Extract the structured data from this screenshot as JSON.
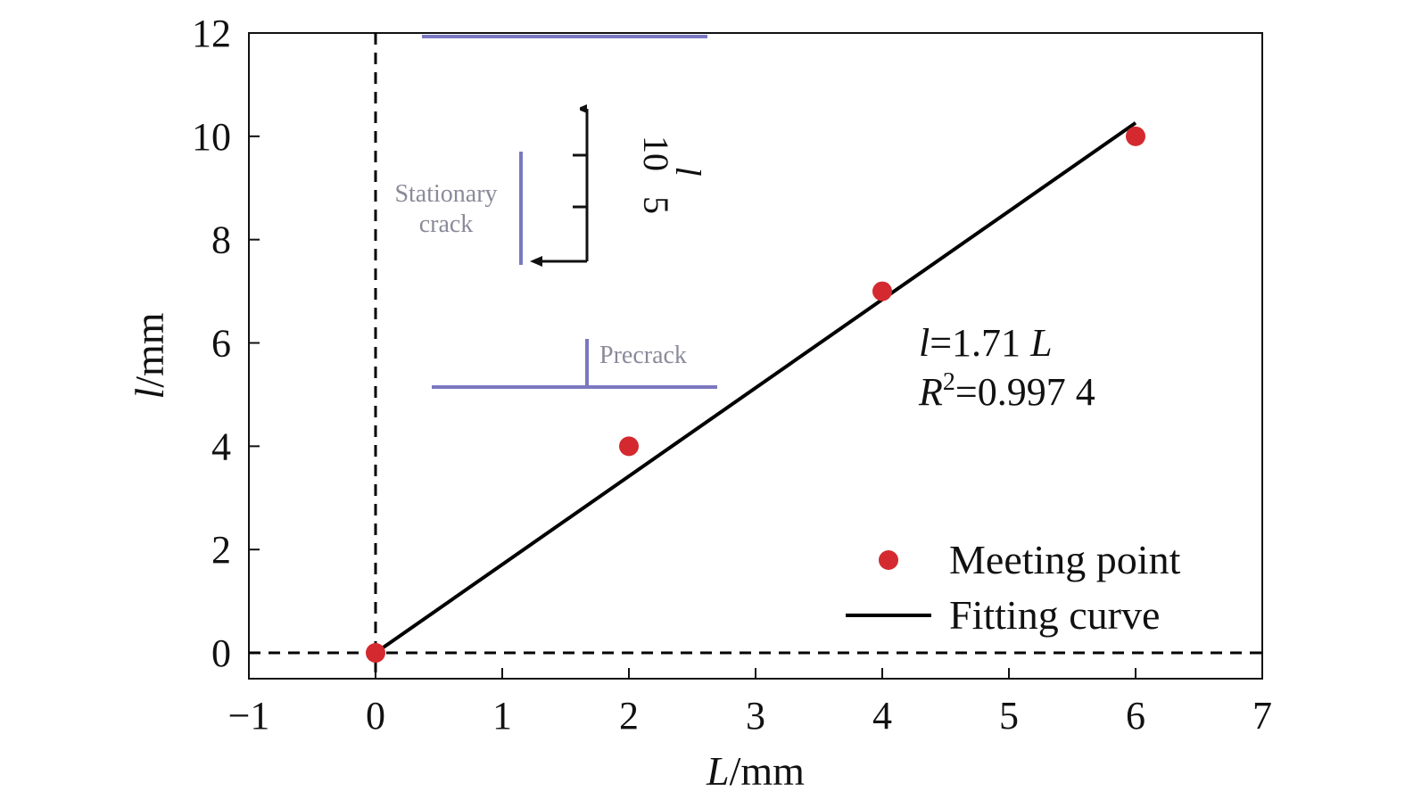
{
  "chart_data": {
    "type": "scatter",
    "xlabel": {
      "var": "L",
      "unit": "/mm"
    },
    "ylabel": {
      "var": "l",
      "unit": "/mm"
    },
    "xlim": [
      -1,
      7
    ],
    "ylim": [
      -0.5,
      12
    ],
    "xticks": [
      -1,
      0,
      1,
      2,
      3,
      4,
      5,
      6,
      7
    ],
    "yticks": [
      0,
      2,
      4,
      6,
      8,
      10,
      12
    ],
    "xtick_labels": [
      "−1",
      "0",
      "1",
      "2",
      "3",
      "4",
      "5",
      "6",
      "7"
    ],
    "grid": false,
    "legend_position": "bottom-right",
    "colors": {
      "points": "#d42a2f",
      "fit": "#000000",
      "inset": "#7b78c0",
      "reference": "#000000"
    },
    "series": [
      {
        "name": "Meeting point",
        "kind": "scatter",
        "x": [
          0,
          2,
          4,
          6
        ],
        "y": [
          0,
          4,
          7,
          10
        ]
      },
      {
        "name": "Fitting curve",
        "kind": "line",
        "slope": 1.71,
        "x": [
          0,
          6
        ],
        "y": [
          0,
          10.26
        ]
      }
    ],
    "reference_lines": [
      {
        "orientation": "vertical",
        "x": 0,
        "style": "dashed"
      },
      {
        "orientation": "horizontal",
        "y": 0,
        "style": "dashed"
      }
    ],
    "equation": {
      "lhs_var": "l",
      "lhs_rest": "=1.71 ",
      "rhs_var": "L",
      "r2_var": "R",
      "r2_sup": "2",
      "r2_value": "=0.997 4"
    },
    "inset": {
      "labels": {
        "stationary_line1": "Stationary",
        "stationary_line2": "crack",
        "precrack": "Precrack"
      },
      "axis_label": "l",
      "axis_ticks": [
        "5",
        "10"
      ]
    }
  }
}
